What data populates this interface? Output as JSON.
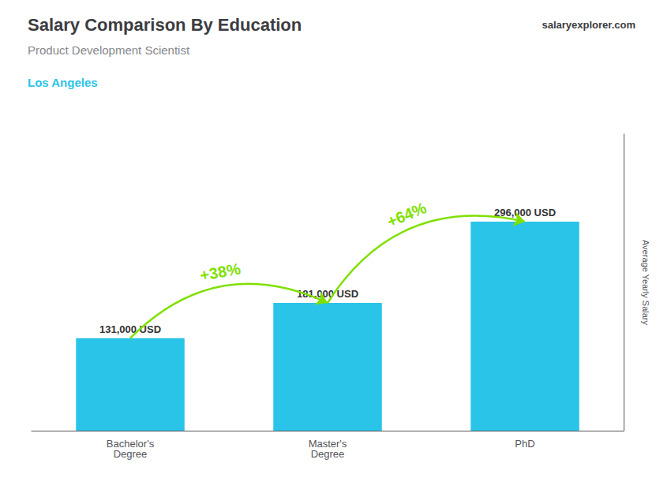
{
  "chart_data": {
    "type": "bar",
    "title": "Salary Comparison By Education",
    "subtitle": [
      "Product Development Scientist",
      "Los Angeles"
    ],
    "annotations": [
      "salaryexplorer.com"
    ],
    "y_label": "Average Yearly Salary",
    "categories": [
      "Bachelor's\nDegree",
      "Master's\nDegree",
      "PhD"
    ],
    "values": [
      131000,
      181000,
      296000
    ],
    "value_labels": [
      "131,000 USD",
      "181,000 USD",
      "296,000 USD"
    ],
    "data_labels": true,
    "color": "#29C4E8",
    "arrows": [
      {
        "label": "+38%",
        "color": "#7FE000"
      },
      {
        "label": "+64%",
        "color": "#7FE000"
      }
    ],
    "ylim": [
      0,
      420000
    ],
    "grid": false,
    "tick_labels": "x"
  }
}
